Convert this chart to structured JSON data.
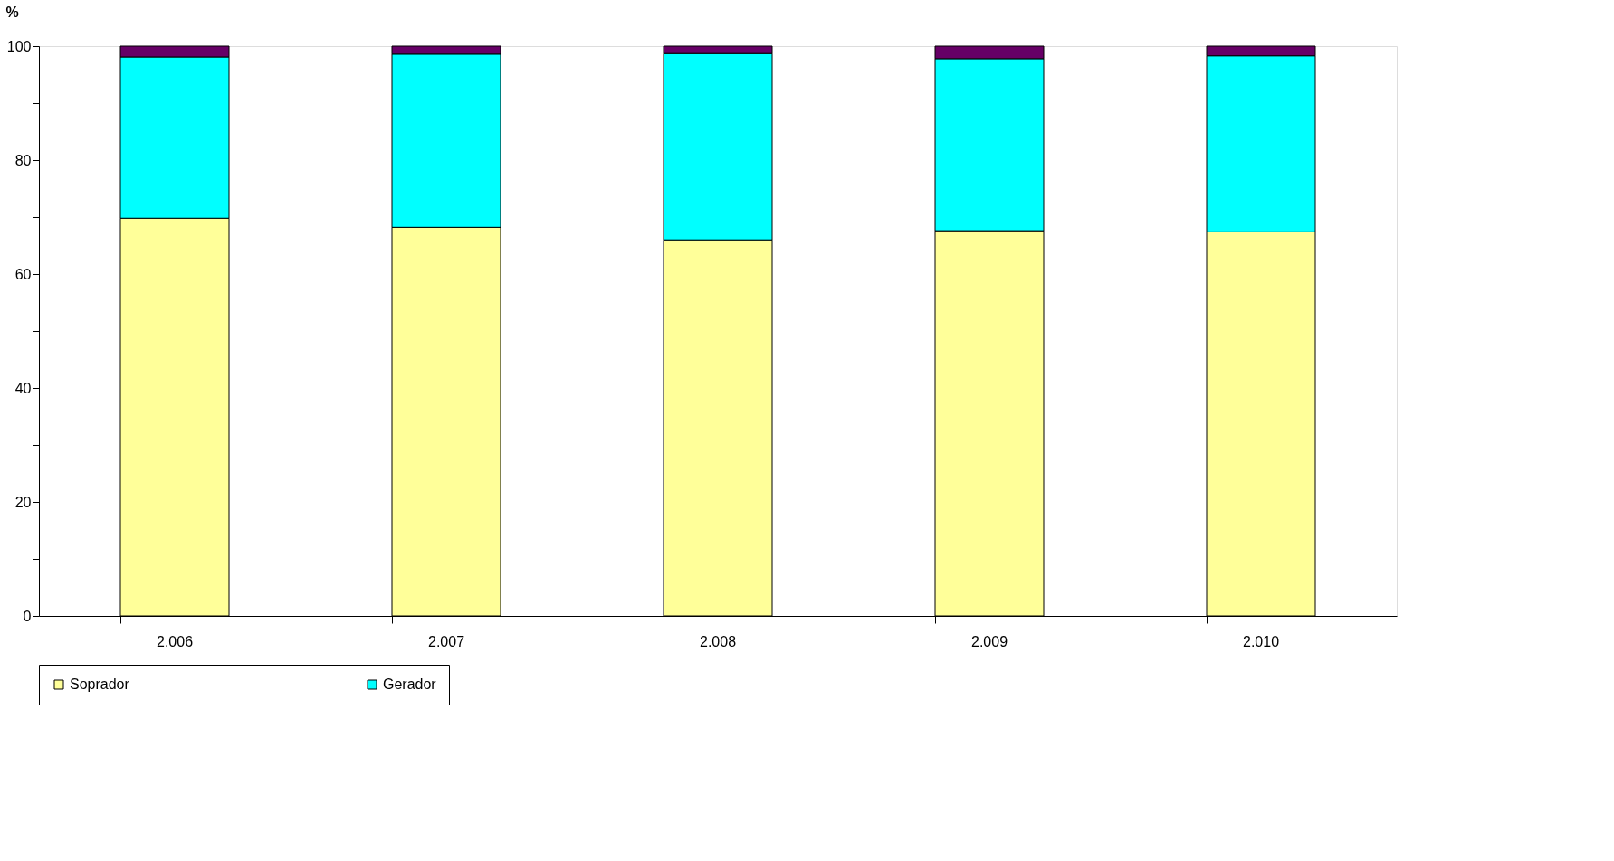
{
  "chart_data": {
    "type": "bar",
    "stacked": true,
    "ylabel": "%",
    "categories": [
      "2.006",
      "2.007",
      "2.008",
      "2.009",
      "2.010"
    ],
    "series": [
      {
        "name": "Soprador",
        "color": "#ffff99",
        "values": [
          69.8,
          68.2,
          66.0,
          67.6,
          67.4
        ]
      },
      {
        "name": "Gerador",
        "color": "#00ffff",
        "values": [
          28.3,
          30.4,
          32.7,
          30.2,
          30.9
        ]
      },
      {
        "color": "#660066",
        "values": [
          1.9,
          1.4,
          1.3,
          2.2,
          1.7
        ]
      }
    ],
    "ylim": [
      0,
      100
    ],
    "yticks": [
      0,
      {
        "value": 10,
        "label": null
      },
      20,
      {
        "value": 30,
        "label": null
      },
      40,
      {
        "value": 50,
        "label": null
      },
      60,
      {
        "value": 70,
        "label": null
      },
      80,
      {
        "value": 90,
        "label": null
      },
      100
    ],
    "grid": false,
    "legend": "bottom"
  }
}
